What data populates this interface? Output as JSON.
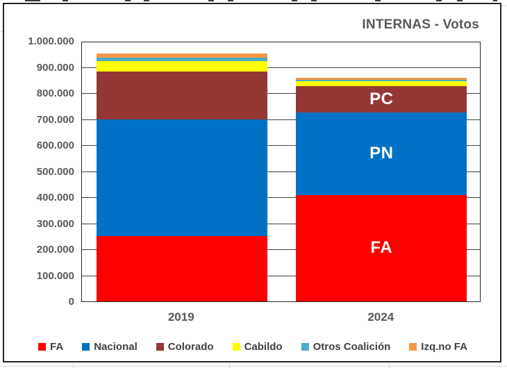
{
  "chart_title": "INTERNAS - Votos",
  "chart_data": {
    "type": "bar",
    "stacked": true,
    "title": "INTERNAS - Votos",
    "categories": [
      "2019",
      "2024"
    ],
    "series": [
      {
        "name": "FA",
        "color": "#FF0000",
        "values": [
          252000,
          409000
        ]
      },
      {
        "name": "Nacional",
        "color": "#0072C6",
        "values": [
          446000,
          317000
        ]
      },
      {
        "name": "Colorado",
        "color": "#953735",
        "values": [
          185000,
          101000
        ]
      },
      {
        "name": "Cabildo",
        "color": "#FFFF00",
        "values": [
          41000,
          18000
        ]
      },
      {
        "name": "Otros Coalición",
        "color": "#4BACC6",
        "values": [
          12000,
          6000
        ]
      },
      {
        "name": "Izq.no FA",
        "color": "#F79646",
        "values": [
          16000,
          9000
        ]
      }
    ],
    "ylim": [
      0,
      1000000
    ],
    "ytick_step": 100000,
    "ytick_labels": [
      "0",
      "100.000",
      "200.000",
      "300.000",
      "400.000",
      "500.000",
      "600.000",
      "700.000",
      "800.000",
      "900.000",
      "1.000.000"
    ],
    "grid": "horizontal",
    "legend_position": "bottom",
    "bar_labels": [
      {
        "category": "2024",
        "series": "Colorado",
        "text": "PC"
      },
      {
        "category": "2024",
        "series": "Nacional",
        "text": "PN"
      },
      {
        "category": "2024",
        "series": "FA",
        "text": "FA"
      }
    ],
    "text_color": "#595959",
    "legend_text_color": "#404040"
  }
}
